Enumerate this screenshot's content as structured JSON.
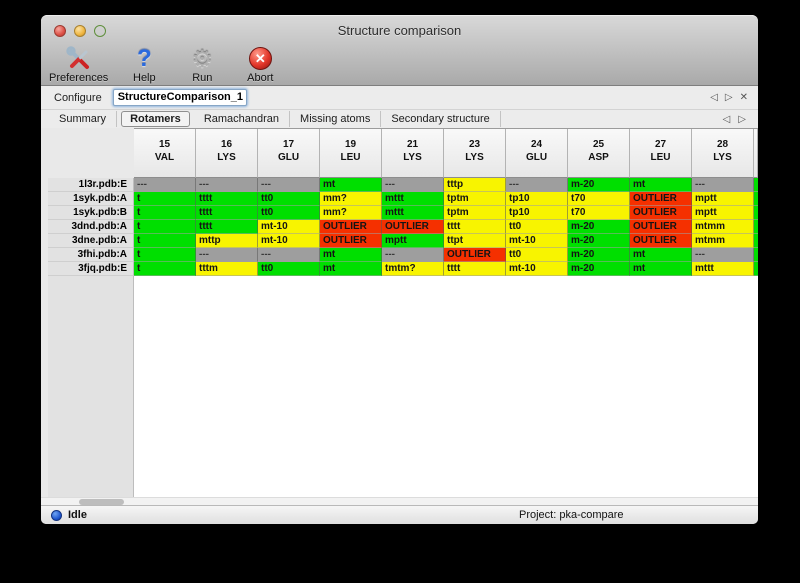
{
  "window": {
    "title": "Structure comparison"
  },
  "toolbar": {
    "buttons": [
      {
        "label": "Preferences",
        "icon": "tools-icon"
      },
      {
        "label": "Help",
        "icon": "question-icon",
        "glyph": "?"
      },
      {
        "label": "Run",
        "icon": "gear-icon",
        "glyph": "⚙"
      },
      {
        "label": "Abort",
        "icon": "abort-icon",
        "glyph": "✕"
      }
    ]
  },
  "configure": {
    "label": "Configure",
    "value": "StructureComparison_1",
    "nav": {
      "prev": "◁",
      "next": "▷",
      "close": "✕"
    }
  },
  "tabs": {
    "items": [
      "Summary",
      "Rotamers",
      "Ramachandran",
      "Missing atoms",
      "Secondary structure"
    ],
    "selected": "Rotamers",
    "nav": {
      "prev": "◁",
      "next": "▷"
    }
  },
  "table": {
    "columns": [
      {
        "num": "15",
        "res": "VAL"
      },
      {
        "num": "16",
        "res": "LYS"
      },
      {
        "num": "17",
        "res": "GLU"
      },
      {
        "num": "19",
        "res": "LEU"
      },
      {
        "num": "21",
        "res": "LYS"
      },
      {
        "num": "23",
        "res": "LYS"
      },
      {
        "num": "24",
        "res": "GLU"
      },
      {
        "num": "25",
        "res": "ASP"
      },
      {
        "num": "27",
        "res": "LEU"
      },
      {
        "num": "28",
        "res": "LYS"
      }
    ],
    "rows": [
      {
        "label": "1l3r.pdb:E",
        "cells": [
          [
            "---",
            "gray"
          ],
          [
            "---",
            "gray"
          ],
          [
            "---",
            "gray"
          ],
          [
            "mt",
            "green"
          ],
          [
            "---",
            "gray"
          ],
          [
            "tttp",
            "yellow"
          ],
          [
            "---",
            "gray"
          ],
          [
            "m-20",
            "green"
          ],
          [
            "mt",
            "green"
          ],
          [
            "---",
            "gray"
          ]
        ]
      },
      {
        "label": "1syk.pdb:A",
        "cells": [
          [
            "t",
            "green"
          ],
          [
            "tttt",
            "green"
          ],
          [
            "tt0",
            "green"
          ],
          [
            "mm?",
            "yellow"
          ],
          [
            "mttt",
            "green"
          ],
          [
            "tptm",
            "yellow"
          ],
          [
            "tp10",
            "yellow"
          ],
          [
            "t70",
            "yellow"
          ],
          [
            "OUTLIER",
            "red"
          ],
          [
            "mptt",
            "yellow"
          ]
        ]
      },
      {
        "label": "1syk.pdb:B",
        "cells": [
          [
            "t",
            "green"
          ],
          [
            "tttt",
            "green"
          ],
          [
            "tt0",
            "green"
          ],
          [
            "mm?",
            "yellow"
          ],
          [
            "mttt",
            "green"
          ],
          [
            "tptm",
            "yellow"
          ],
          [
            "tp10",
            "yellow"
          ],
          [
            "t70",
            "yellow"
          ],
          [
            "OUTLIER",
            "red"
          ],
          [
            "mptt",
            "yellow"
          ]
        ]
      },
      {
        "label": "3dnd.pdb:A",
        "cells": [
          [
            "t",
            "green"
          ],
          [
            "tttt",
            "green"
          ],
          [
            "mt-10",
            "yellow"
          ],
          [
            "OUTLIER",
            "red"
          ],
          [
            "OUTLIER",
            "red"
          ],
          [
            "tttt",
            "yellow"
          ],
          [
            "tt0",
            "yellow"
          ],
          [
            "m-20",
            "green"
          ],
          [
            "OUTLIER",
            "red"
          ],
          [
            "mtmm",
            "yellow"
          ]
        ]
      },
      {
        "label": "3dne.pdb:A",
        "cells": [
          [
            "t",
            "green"
          ],
          [
            "mttp",
            "yellow"
          ],
          [
            "mt-10",
            "yellow"
          ],
          [
            "OUTLIER",
            "red"
          ],
          [
            "mptt",
            "green"
          ],
          [
            "ttpt",
            "yellow"
          ],
          [
            "mt-10",
            "yellow"
          ],
          [
            "m-20",
            "green"
          ],
          [
            "OUTLIER",
            "red"
          ],
          [
            "mtmm",
            "yellow"
          ]
        ]
      },
      {
        "label": "3fhi.pdb:A",
        "cells": [
          [
            "t",
            "green"
          ],
          [
            "---",
            "gray"
          ],
          [
            "---",
            "gray"
          ],
          [
            "mt",
            "green"
          ],
          [
            "---",
            "gray"
          ],
          [
            "OUTLIER",
            "red"
          ],
          [
            "tt0",
            "yellow"
          ],
          [
            "m-20",
            "green"
          ],
          [
            "mt",
            "green"
          ],
          [
            "---",
            "gray"
          ]
        ]
      },
      {
        "label": "3fjq.pdb:E",
        "cells": [
          [
            "t",
            "green"
          ],
          [
            "tttm",
            "yellow"
          ],
          [
            "tt0",
            "green"
          ],
          [
            "mt",
            "green"
          ],
          [
            "tmtm?",
            "yellow"
          ],
          [
            "tttt",
            "yellow"
          ],
          [
            "mt-10",
            "yellow"
          ],
          [
            "m-20",
            "green"
          ],
          [
            "mt",
            "green"
          ],
          [
            "mttt",
            "yellow"
          ]
        ]
      }
    ],
    "partial_column_cell_colors": [
      "green",
      "green",
      "green",
      "green",
      "green",
      "green",
      "green"
    ]
  },
  "statusbar": {
    "status": "Idle",
    "project": "Project: pka-compare"
  },
  "colors": {
    "green": "#00df00",
    "yellow": "#f8f400",
    "red": "#f53000",
    "gray": "#9e9e9e",
    "status_dot": "#1d54cd"
  }
}
